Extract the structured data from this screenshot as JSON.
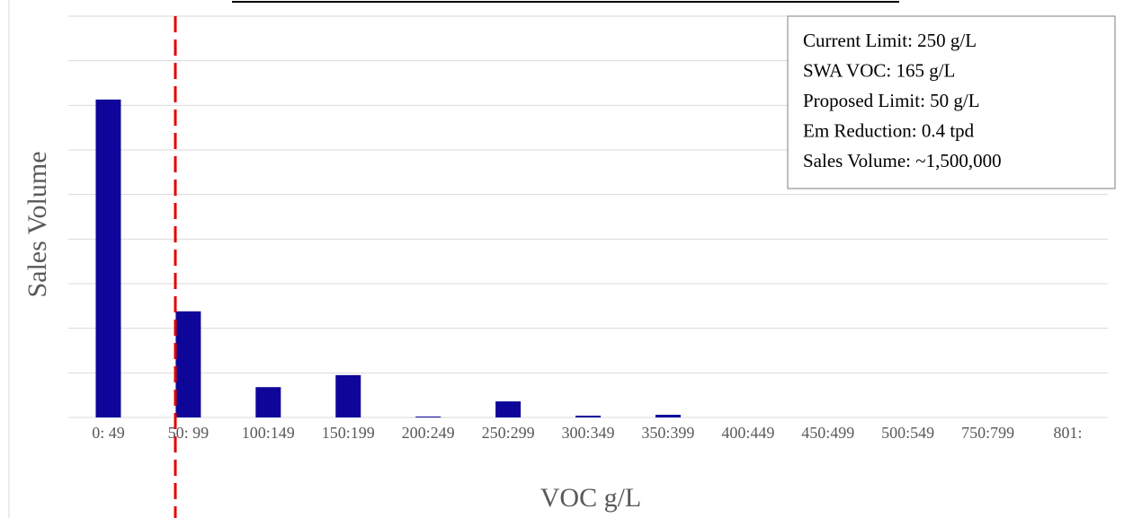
{
  "chart_data": {
    "type": "bar",
    "xlabel": "VOC g/L",
    "ylabel": "Sales Volume",
    "categories": [
      "0: 49",
      "50: 99",
      "100:149",
      "150:199",
      "200:249",
      "250:299",
      "300:349",
      "350:399",
      "400:449",
      "450:499",
      "500:549",
      "750:799",
      "801:"
    ],
    "values": [
      7.13,
      2.38,
      0.68,
      0.95,
      0.02,
      0.36,
      0.04,
      0.06,
      0,
      0,
      0,
      0,
      0
    ],
    "color": "#0d0699",
    "ylim": [
      0,
      9
    ],
    "yticks": [
      0,
      1,
      2,
      3,
      4,
      5,
      6,
      7,
      8,
      9
    ],
    "grid": true,
    "annotation": [
      "Current Limit: 250 g/L",
      "SWA VOC: 165 g/L",
      "Proposed Limit: 50 g/L",
      "Em Reduction: 0.4 tpd",
      "Sales Volume: ~1,500,000"
    ]
  }
}
